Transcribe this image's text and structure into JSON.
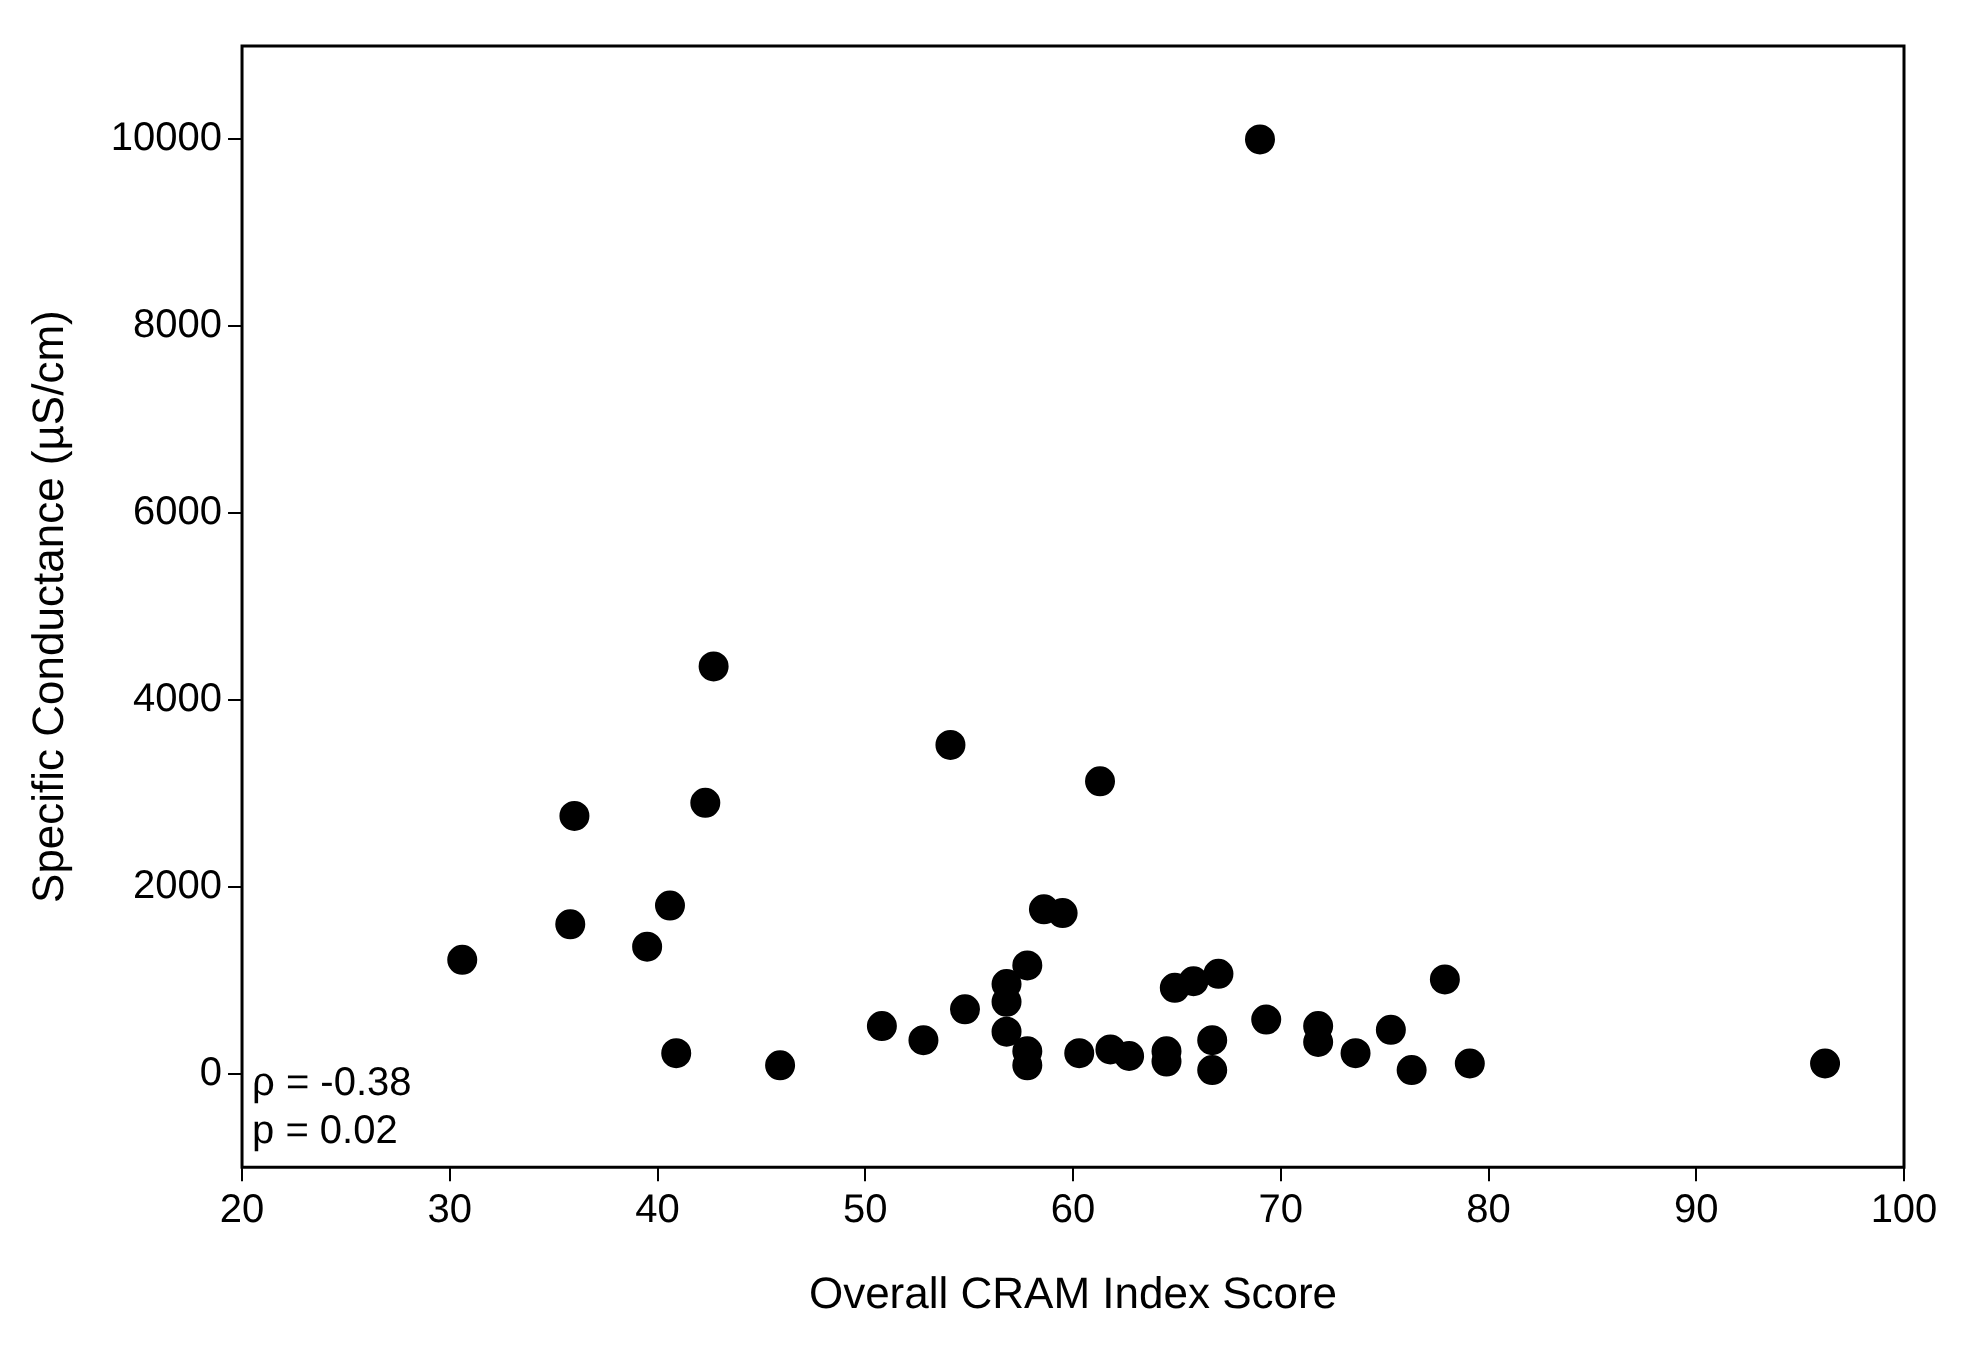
{
  "chart_data": {
    "type": "scatter",
    "xlabel": "Overall CRAM Index Score",
    "ylabel": "Specific Conductance (µS/cm)",
    "x": [
      30.6,
      35.8,
      36,
      39.5,
      40.6,
      40.9,
      42.3,
      42.7,
      45.9,
      50.8,
      52.8,
      54.1,
      54.8,
      56.8,
      56.8,
      56.8,
      57.8,
      57.8,
      57.8,
      58.6,
      59.5,
      60.3,
      61.3,
      61.8,
      62.7,
      64.5,
      64.5,
      64.9,
      65.8,
      67,
      66.7,
      66.7,
      69,
      69.3,
      71.8,
      71.8,
      73.6,
      75.3,
      76.3,
      77.9,
      79.1,
      96.2
    ],
    "series": [
      {
        "color": "#000000",
        "values": [
          1220,
          1600,
          2760,
          1360,
          1800,
          220,
          2900,
          4360,
          90,
          510,
          360,
          3520,
          690,
          960,
          770,
          450,
          1160,
          240,
          90,
          1760,
          1720,
          220,
          3130,
          260,
          190,
          240,
          130,
          920,
          990,
          1070,
          360,
          40,
          10000,
          580,
          510,
          340,
          220,
          470,
          40,
          1010,
          110,
          110
        ]
      }
    ],
    "xlim": [
      20,
      100
    ],
    "xticks": [
      20,
      30,
      40,
      50,
      60,
      70,
      80,
      90,
      100
    ],
    "ylim": [
      -1000,
      11000
    ],
    "yticks": [
      0,
      2000,
      4000,
      6000,
      8000,
      10000
    ],
    "grid": false,
    "legend": false,
    "marker": "circle",
    "annotations": [
      "ρ = -0.38",
      "p = 0.02"
    ]
  }
}
